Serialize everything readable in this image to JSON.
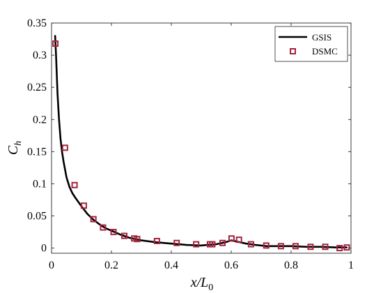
{
  "chart_data": {
    "type": "line",
    "xlabel": {
      "main": "x/L",
      "sub": "0"
    },
    "ylabel": {
      "main": "C",
      "sub": "h"
    },
    "xlim": [
      0,
      1
    ],
    "ylim": [
      -0.008,
      0.35
    ],
    "x_ticks": [
      0,
      0.2,
      0.4,
      0.6,
      0.8,
      1
    ],
    "x_tick_labels": [
      "0",
      "0.2",
      "0.4",
      "0.6",
      "0.8",
      "1"
    ],
    "y_ticks": [
      0,
      0.05,
      0.1,
      0.15,
      0.2,
      0.25,
      0.3,
      0.35
    ],
    "y_tick_labels": [
      "0",
      "0.05",
      "0.1",
      "0.15",
      "0.2",
      "0.25",
      "0.3",
      "0.35"
    ],
    "grid": false,
    "legend_position": "top-right",
    "series": [
      {
        "name": "GSIS",
        "style": "line",
        "color": "#000000",
        "x": [
          0.012,
          0.015,
          0.02,
          0.025,
          0.03,
          0.035,
          0.04,
          0.05,
          0.06,
          0.07,
          0.08,
          0.1,
          0.12,
          0.14,
          0.16,
          0.18,
          0.2,
          0.23,
          0.26,
          0.3,
          0.35,
          0.4,
          0.45,
          0.5,
          0.52,
          0.55,
          0.58,
          0.6,
          0.62,
          0.65,
          0.68,
          0.7,
          0.72,
          0.76,
          0.8,
          0.85,
          0.9,
          0.95,
          0.985
        ],
        "y": [
          0.33,
          0.3,
          0.24,
          0.2,
          0.17,
          0.15,
          0.135,
          0.11,
          0.095,
          0.085,
          0.078,
          0.065,
          0.053,
          0.044,
          0.037,
          0.031,
          0.027,
          0.021,
          0.016,
          0.012,
          0.009,
          0.007,
          0.005,
          0.004,
          0.005,
          0.006,
          0.009,
          0.012,
          0.01,
          0.007,
          0.005,
          0.004,
          0.003,
          0.003,
          0.003,
          0.002,
          0.002,
          0.001,
          0.001
        ]
      },
      {
        "name": "DSMC",
        "style": "square-markers",
        "color": "#a3223b",
        "x": [
          0.013,
          0.045,
          0.077,
          0.108,
          0.14,
          0.172,
          0.207,
          0.243,
          0.276,
          0.286,
          0.352,
          0.418,
          0.483,
          0.529,
          0.537,
          0.571,
          0.601,
          0.626,
          0.666,
          0.717,
          0.766,
          0.815,
          0.865,
          0.914,
          0.962,
          0.986
        ],
        "y": [
          0.318,
          0.156,
          0.098,
          0.066,
          0.045,
          0.032,
          0.025,
          0.019,
          0.015,
          0.014,
          0.011,
          0.008,
          0.006,
          0.006,
          0.006,
          0.008,
          0.015,
          0.013,
          0.006,
          0.004,
          0.003,
          0.003,
          0.002,
          0.002,
          0.0,
          0.001
        ]
      }
    ]
  }
}
